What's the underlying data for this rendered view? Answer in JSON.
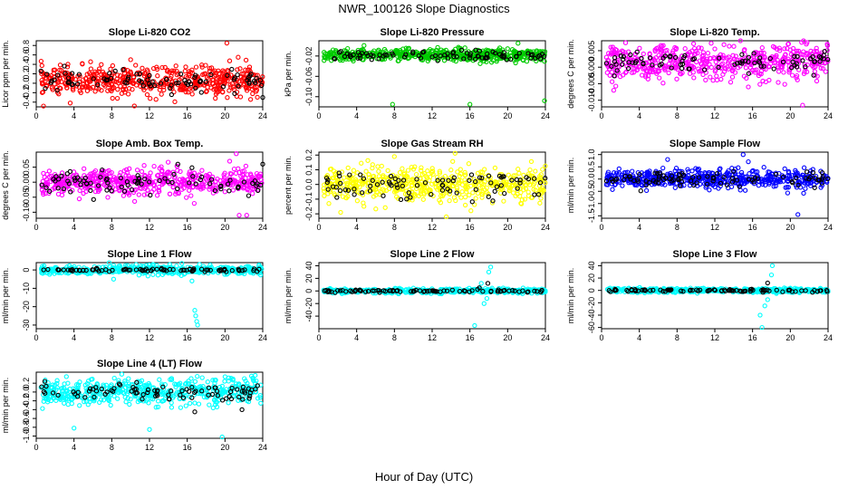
{
  "figure": {
    "title": "NWR_100126  Slope Diagnostics",
    "xlabel": "Hour of Day (UTC)"
  },
  "chart_data": [
    {
      "type": "scatter",
      "title": "Slope Li-820 CO2",
      "ylabel": "Licor ppm per min.",
      "xlim": [
        0,
        24
      ],
      "ylim": [
        -0.5,
        0.9
      ],
      "xticks": [
        0,
        4,
        8,
        12,
        16,
        20,
        24
      ],
      "yticks": [
        -0.4,
        -0.2,
        0.0,
        0.2,
        0.4,
        0.6,
        0.8
      ],
      "yticklabels": [
        "-0.4",
        "-0.2",
        "0.0",
        "0.2",
        "0.4",
        "0.6",
        "0.8"
      ],
      "series": [
        {
          "color": "#ff0000",
          "center": 0.05,
          "spread": 0.18,
          "count": 520,
          "outliers": [
            [
              20.2,
              0.85
            ],
            [
              10.4,
              -0.48
            ],
            [
              3.6,
              -0.42
            ],
            [
              21.4,
              0.55
            ],
            [
              10.0,
              0.5
            ]
          ]
        },
        {
          "color": "#000000",
          "center": 0.05,
          "spread": 0.12,
          "count": 85,
          "outliers": [
            [
              24.0,
              -0.3
            ],
            [
              0.5,
              0.26
            ]
          ]
        }
      ]
    },
    {
      "type": "scatter",
      "title": "Slope Li-820 Pressure",
      "ylabel": "kPa per min.",
      "xlim": [
        0,
        24
      ],
      "ylim": [
        -0.12,
        0.01
      ],
      "xticks": [
        0,
        4,
        8,
        12,
        16,
        20,
        24
      ],
      "yticks": [
        -0.1,
        -0.06,
        -0.02
      ],
      "yticklabels": [
        "-0.10",
        "-0.06",
        "-0.02"
      ],
      "series": [
        {
          "color": "#00cc00",
          "center": -0.018,
          "spread": 0.007,
          "count": 520,
          "outliers": [
            [
              7.8,
              -0.115
            ],
            [
              16.0,
              -0.115
            ],
            [
              23.9,
              -0.108
            ],
            [
              21.1,
              0.005
            ]
          ]
        },
        {
          "color": "#000000",
          "center": -0.02,
          "spread": 0.006,
          "count": 85,
          "outliers": []
        }
      ]
    },
    {
      "type": "scatter",
      "title": "Slope Li-820 Temp.",
      "ylabel": "degrees C per min.",
      "xlim": [
        0,
        24
      ],
      "ylim": [
        -0.012,
        0.008
      ],
      "xticks": [
        0,
        4,
        8,
        12,
        16,
        20,
        24
      ],
      "yticks": [
        -0.01,
        -0.005,
        0.0,
        0.005
      ],
      "yticklabels": [
        "-0.010",
        "-0.005",
        "0.000",
        "0.005"
      ],
      "series": [
        {
          "color": "#ff00ff",
          "center": 0.0015,
          "spread": 0.003,
          "count": 520,
          "outliers": [
            [
              21.2,
              0.0075
            ],
            [
              21.7,
              0.007
            ],
            [
              21.3,
              -0.0115
            ]
          ]
        },
        {
          "color": "#000000",
          "center": 0.0015,
          "spread": 0.002,
          "count": 85,
          "outliers": []
        }
      ]
    },
    {
      "type": "scatter",
      "title": "Slope Amb. Box Temp.",
      "ylabel": "degrees C per min.",
      "xlim": [
        0,
        24
      ],
      "ylim": [
        -0.12,
        0.1
      ],
      "xticks": [
        0,
        4,
        8,
        12,
        16,
        20,
        24
      ],
      "yticks": [
        -0.1,
        -0.05,
        0.0,
        0.05
      ],
      "yticklabels": [
        "-0.10",
        "-0.05",
        "0.00",
        "0.05"
      ],
      "series": [
        {
          "color": "#ff00ff",
          "center": 0.0,
          "spread": 0.025,
          "count": 520,
          "outliers": [
            [
              21.5,
              -0.11
            ],
            [
              22.3,
              -0.11
            ],
            [
              21.2,
              0.095
            ],
            [
              20.5,
              0.07
            ]
          ]
        },
        {
          "color": "#000000",
          "center": 0.0,
          "spread": 0.02,
          "count": 85,
          "outliers": [
            [
              24.0,
              0.06
            ],
            [
              15.0,
              0.06
            ]
          ]
        }
      ]
    },
    {
      "type": "scatter",
      "title": "Slope Gas Stream RH",
      "ylabel": "percent per min.",
      "xlim": [
        0,
        24
      ],
      "ylim": [
        -0.23,
        0.22
      ],
      "xticks": [
        0,
        4,
        8,
        12,
        16,
        20,
        24
      ],
      "yticks": [
        -0.2,
        -0.1,
        0.0,
        0.1,
        0.2
      ],
      "yticklabels": [
        "-0.2",
        "-0.1",
        "0.0",
        "0.1",
        "0.2"
      ],
      "series": [
        {
          "color": "#ffff00",
          "center": 0.0,
          "spread": 0.07,
          "count": 520,
          "outliers": [
            [
              13.5,
              -0.22
            ],
            [
              8.0,
              0.19
            ],
            [
              2.3,
              -0.19
            ]
          ]
        },
        {
          "color": "#000000",
          "center": 0.0,
          "spread": 0.06,
          "count": 85,
          "outliers": []
        }
      ]
    },
    {
      "type": "scatter",
      "title": "Slope Sample Flow",
      "ylabel": "ml/min per min.",
      "xlim": [
        0,
        24
      ],
      "ylim": [
        -1.6,
        1.1
      ],
      "xticks": [
        0,
        4,
        8,
        12,
        16,
        20,
        24
      ],
      "yticks": [
        -1.5,
        -1.0,
        -0.5,
        0.0,
        0.5,
        1.0
      ],
      "yticklabels": [
        "-1.5",
        "-1.0",
        "-0.5",
        "0.0",
        "0.5",
        "1.0"
      ],
      "series": [
        {
          "color": "#0000ff",
          "center": 0.0,
          "spread": 0.22,
          "count": 520,
          "outliers": [
            [
              20.8,
              -1.45
            ],
            [
              15.0,
              1.0
            ],
            [
              7.0,
              0.8
            ]
          ]
        },
        {
          "color": "#000000",
          "center": 0.0,
          "spread": 0.18,
          "count": 85,
          "outliers": []
        }
      ]
    },
    {
      "type": "scatter",
      "title": "Slope Line 1 Flow",
      "ylabel": "ml/min per min.",
      "xlim": [
        0,
        24
      ],
      "ylim": [
        -32,
        4
      ],
      "xticks": [
        0,
        4,
        8,
        12,
        16,
        20,
        24
      ],
      "yticks": [
        -30,
        -20,
        -10,
        0
      ],
      "yticklabels": [
        "-30",
        "-20",
        "-10",
        "0"
      ],
      "series": [
        {
          "color": "#00ffff",
          "center": 0.0,
          "spread": 1.4,
          "count": 480,
          "outliers": [
            [
              16.8,
              -22
            ],
            [
              16.9,
              -25
            ],
            [
              17.0,
              -28
            ],
            [
              17.1,
              -30
            ],
            [
              17.3,
              3
            ],
            [
              8.2,
              -5
            ],
            [
              16.5,
              -6
            ]
          ]
        },
        {
          "color": "#000000",
          "center": 0.0,
          "spread": 0.5,
          "count": 85,
          "outliers": []
        }
      ]
    },
    {
      "type": "scatter",
      "title": "Slope Line 2 Flow",
      "ylabel": "ml/min per min.",
      "xlim": [
        0,
        24
      ],
      "ylim": [
        -60,
        45
      ],
      "xticks": [
        0,
        4,
        8,
        12,
        16,
        20,
        24
      ],
      "yticks": [
        -40,
        -20,
        0,
        20,
        40
      ],
      "yticklabels": [
        "-40",
        "-20",
        "0",
        "20",
        "40"
      ],
      "series": [
        {
          "color": "#00ffff",
          "center": 0.0,
          "spread": 2.0,
          "count": 480,
          "outliers": [
            [
              16.5,
              -55
            ],
            [
              17.5,
              -20
            ],
            [
              17.8,
              -12
            ],
            [
              18.2,
              38
            ],
            [
              18.0,
              30
            ],
            [
              17.2,
              12
            ]
          ]
        },
        {
          "color": "#000000",
          "center": 0.0,
          "spread": 1.2,
          "count": 85,
          "outliers": [
            [
              17.9,
              12
            ],
            [
              17.0,
              5
            ]
          ]
        }
      ]
    },
    {
      "type": "scatter",
      "title": "Slope Line 3 Flow",
      "ylabel": "ml/min per min.",
      "xlim": [
        0,
        24
      ],
      "ylim": [
        -62,
        45
      ],
      "xticks": [
        0,
        4,
        8,
        12,
        16,
        20,
        24
      ],
      "yticks": [
        -60,
        -40,
        -20,
        0,
        20,
        40
      ],
      "yticklabels": [
        "-60",
        "-40",
        "-20",
        "0",
        "20",
        "40"
      ],
      "series": [
        {
          "color": "#00ffff",
          "center": 0.0,
          "spread": 2.0,
          "count": 480,
          "outliers": [
            [
              17.0,
              -60
            ],
            [
              16.8,
              -40
            ],
            [
              17.3,
              -25
            ],
            [
              18.1,
              40
            ],
            [
              18.0,
              25
            ],
            [
              17.6,
              -15
            ]
          ]
        },
        {
          "color": "#000000",
          "center": 0.0,
          "spread": 1.2,
          "count": 85,
          "outliers": [
            [
              17.6,
              12
            ],
            [
              17.1,
              -3
            ]
          ]
        }
      ]
    },
    {
      "type": "scatter",
      "title": "Slope Line 4 (LT) Flow",
      "ylabel": "ml/min per min.",
      "xlim": [
        0,
        24
      ],
      "ylim": [
        -1.05,
        0.45
      ],
      "xticks": [
        0,
        4,
        8,
        12,
        16,
        20,
        24
      ],
      "yticks": [
        -1.0,
        -0.8,
        -0.6,
        -0.4,
        -0.2,
        0.0,
        0.2
      ],
      "yticklabels": [
        "-1.0",
        "-0.8",
        "-0.6",
        "-0.4",
        "-0.2",
        "0.0",
        "0.2"
      ],
      "series": [
        {
          "color": "#00ffff",
          "center": 0.0,
          "spread": 0.17,
          "count": 520,
          "outliers": [
            [
              19.7,
              -1.02
            ],
            [
              4.0,
              -0.82
            ],
            [
              12.0,
              -0.85
            ],
            [
              3.2,
              0.35
            ],
            [
              20.4,
              0.32
            ]
          ]
        },
        {
          "color": "#000000",
          "center": 0.0,
          "spread": 0.12,
          "count": 85,
          "outliers": [
            [
              16.8,
              -0.45
            ],
            [
              21.8,
              -0.4
            ]
          ]
        }
      ]
    }
  ]
}
